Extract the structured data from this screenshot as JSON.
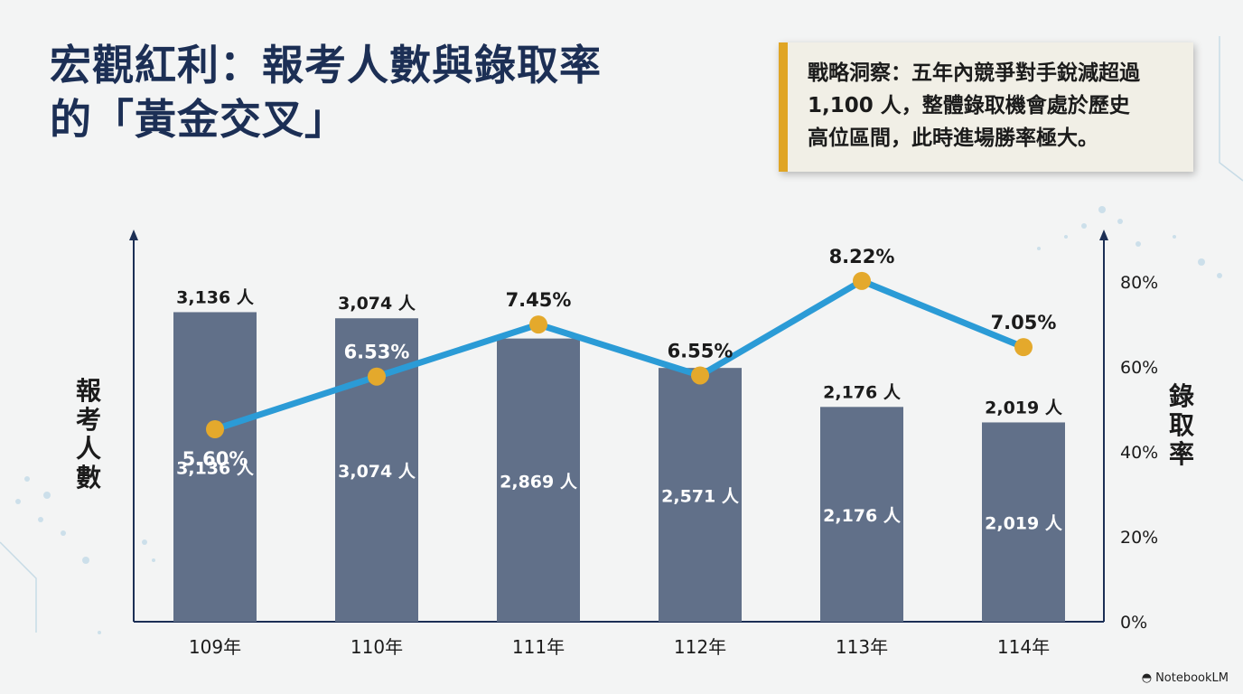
{
  "title": {
    "line1": "宏觀紅利：報考人數與錄取率",
    "line2": "的「黃金交叉」"
  },
  "insight": {
    "line1": "戰略洞察：五年內競爭對手銳減超過",
    "line2": "1,100 人，整體錄取機會處於歷史",
    "line3": "高位區間，此時進場勝率極大。"
  },
  "chart_data": {
    "type": "bar",
    "categories": [
      "109年",
      "110年",
      "111年",
      "112年",
      "113年",
      "114年"
    ],
    "series": [
      {
        "type": "bar",
        "axis": "left",
        "values": [
          3136,
          3074,
          2869,
          2571,
          2176,
          2019
        ],
        "labels": [
          "3,136 人",
          "3,074 人",
          "2,869 人",
          "2,571 人",
          "2,176 人",
          "2,019 人"
        ]
      },
      {
        "type": "line",
        "axis": "right",
        "values": [
          5.6,
          6.53,
          7.45,
          6.55,
          8.22,
          7.05
        ],
        "labels": [
          "5.60%",
          "6.53%",
          "7.45%",
          "6.55%",
          "8.22%",
          "7.05%"
        ]
      }
    ],
    "bar_top_labels": [
      "3,136 人",
      "3,074 人",
      "",
      "",
      "2,176 人",
      "2,019 人"
    ],
    "ylabel_left": "報考人數",
    "ylabel_right": "錄取率",
    "right_ticks": [
      "0%",
      "20%",
      "40%",
      "60%",
      "80%"
    ],
    "ylim_left": [
      0,
      3900
    ],
    "ylim_right": [
      2.2,
      9.0
    ],
    "colors": {
      "bar": "#617089",
      "line": "#2b9bd6",
      "marker": "#e4a92c",
      "axis": "#1c2f55"
    }
  },
  "brand": {
    "icon": "notebooklm-icon",
    "label": "NotebookLM"
  }
}
